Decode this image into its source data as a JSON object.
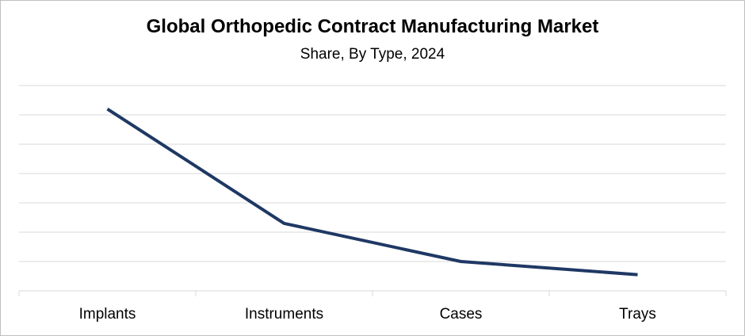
{
  "chart_data": {
    "type": "line",
    "title": "Global Orthopedic Contract Manufacturing Market",
    "subtitle": "Share, By Type, 2024",
    "xlabel": "",
    "ylabel": "",
    "categories": [
      "Implants",
      "Instruments",
      "Cases",
      "Trays"
    ],
    "series": [
      {
        "values": [
          62,
          23,
          10,
          5.5
        ]
      }
    ],
    "ylim": [
      0,
      70
    ],
    "grid": true,
    "y_tick_labels_shown": false,
    "legend": "none",
    "line_color": "#1f3864",
    "gridline_color": "#d9d9d9"
  }
}
